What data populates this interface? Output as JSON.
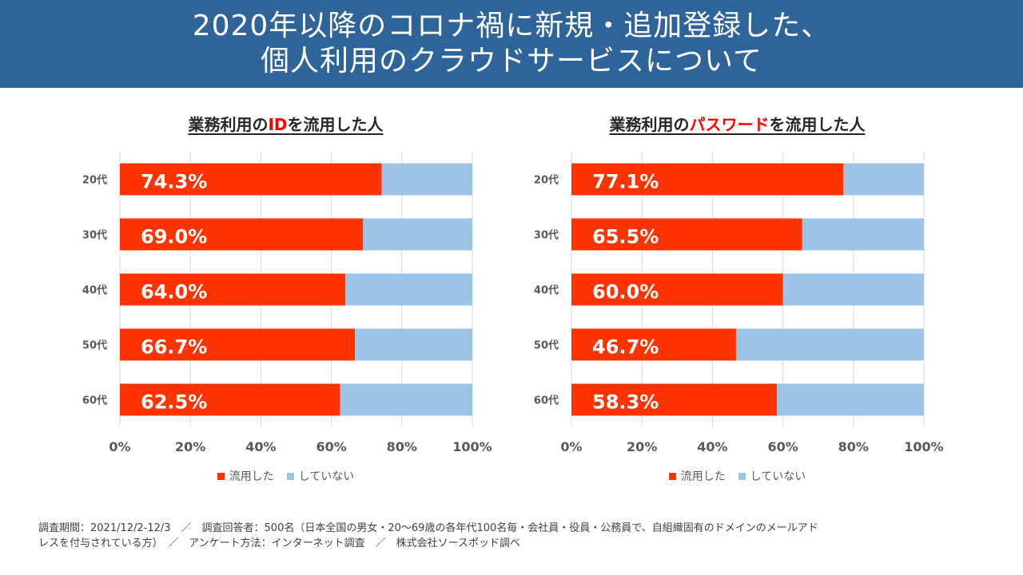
{
  "header": {
    "line1": "2020年以降のコロナ禍に新規・追加登録した、",
    "line2": "個人利用のクラウドサービスについて"
  },
  "colors": {
    "banner": "#2e6499",
    "used": "#ff3300",
    "not_used": "#9dc3e6",
    "highlight": "#ff0000"
  },
  "legend": {
    "used": "流用した",
    "not_used": "していない"
  },
  "chart_data": [
    {
      "type": "bar",
      "orientation": "horizontal",
      "stacked": "percent",
      "title_before": "業務利用の",
      "title_highlight": "ID",
      "title_after": "を流用した人",
      "categories": [
        "20代",
        "30代",
        "40代",
        "50代",
        "60代"
      ],
      "series": [
        {
          "name": "流用した",
          "values": [
            74.3,
            69.0,
            64.0,
            66.7,
            62.5
          ]
        },
        {
          "name": "していない",
          "values": [
            25.7,
            31.0,
            36.0,
            33.3,
            37.5
          ]
        }
      ],
      "data_labels": [
        "74.3%",
        "69.0%",
        "64.0%",
        "66.7%",
        "62.5%"
      ],
      "xlim": [
        0,
        100
      ],
      "xticks": [
        "0%",
        "20%",
        "40%",
        "60%",
        "80%",
        "100%"
      ],
      "grid": true,
      "legend_position": "bottom"
    },
    {
      "type": "bar",
      "orientation": "horizontal",
      "stacked": "percent",
      "title_before": "業務利用の",
      "title_highlight": "パスワード",
      "title_after": "を流用した人",
      "categories": [
        "20代",
        "30代",
        "40代",
        "50代",
        "60代"
      ],
      "series": [
        {
          "name": "流用した",
          "values": [
            77.1,
            65.5,
            60.0,
            46.7,
            58.3
          ]
        },
        {
          "name": "していない",
          "values": [
            22.9,
            34.5,
            40.0,
            53.3,
            41.7
          ]
        }
      ],
      "data_labels": [
        "77.1%",
        "65.5%",
        "60.0%",
        "46.7%",
        "58.3%"
      ],
      "xlim": [
        0,
        100
      ],
      "xticks": [
        "0%",
        "20%",
        "40%",
        "60%",
        "80%",
        "100%"
      ],
      "grid": true,
      "legend_position": "bottom"
    }
  ],
  "footer": {
    "line1": "調査期間：2021/12/2-12/3　／　調査回答者：500名（日本全国の男女・20〜69歳の各年代100名毎・会社員・役員・公務員で、自組織固有のドメインのメールアド",
    "line2": "レスを付与されている方）　／　アンケート方法：インターネット調査　／　株式会社ソースポッド調べ"
  }
}
